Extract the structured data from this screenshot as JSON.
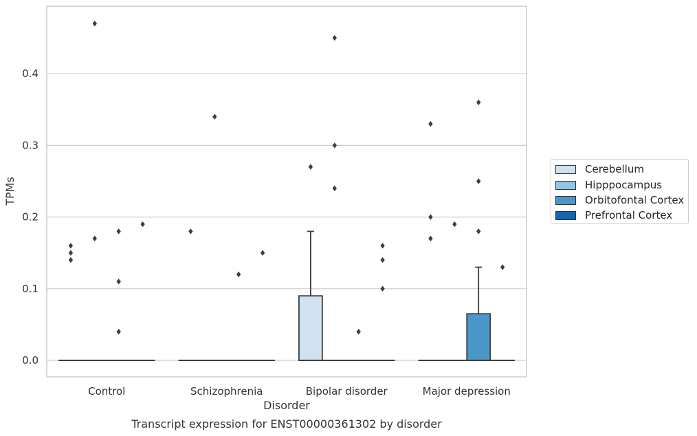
{
  "chart_data": {
    "type": "box",
    "title": "Transcript expression for ENST00000361302 by disorder",
    "xlabel": "Disorder",
    "ylabel": "TPMs",
    "ylim": [
      -0.023,
      0.495
    ],
    "yticks": [
      "0.0",
      "0.1",
      "0.2",
      "0.3",
      "0.4"
    ],
    "grid": "horizontal",
    "legend_position": "right",
    "categories": [
      "Control",
      "Schizophrenia",
      "Bipolar disorder",
      "Major depression"
    ],
    "series": [
      {
        "name": "Cerebellum",
        "color": "#d0e1f2",
        "boxes": [
          {
            "q1": 0,
            "median": 0,
            "q3": 0,
            "whisker_low": 0,
            "whisker_high": 0,
            "outliers": [
              0.16,
              0.15,
              0.14
            ]
          },
          {
            "q1": 0,
            "median": 0,
            "q3": 0,
            "whisker_low": 0,
            "whisker_high": 0,
            "outliers": [
              0.18
            ]
          },
          {
            "q1": 0,
            "median": 0,
            "q3": 0.09,
            "whisker_low": 0,
            "whisker_high": 0.18,
            "outliers": [
              0.27
            ]
          },
          {
            "q1": 0,
            "median": 0,
            "q3": 0,
            "whisker_low": 0,
            "whisker_high": 0,
            "outliers": [
              0.33,
              0.2,
              0.17
            ]
          }
        ]
      },
      {
        "name": "Hipppocampus",
        "color": "#94c4df",
        "boxes": [
          {
            "q1": 0,
            "median": 0,
            "q3": 0,
            "whisker_low": 0,
            "whisker_high": 0,
            "outliers": [
              0.47,
              0.17
            ]
          },
          {
            "q1": 0,
            "median": 0,
            "q3": 0,
            "whisker_low": 0,
            "whisker_high": 0,
            "outliers": [
              0.34
            ]
          },
          {
            "q1": 0,
            "median": 0,
            "q3": 0,
            "whisker_low": 0,
            "whisker_high": 0,
            "outliers": [
              0.45,
              0.3,
              0.24
            ]
          },
          {
            "q1": 0,
            "median": 0,
            "q3": 0,
            "whisker_low": 0,
            "whisker_high": 0,
            "outliers": [
              0.19
            ]
          }
        ]
      },
      {
        "name": "Orbitofontal Cortex",
        "color": "#4a98c9",
        "boxes": [
          {
            "q1": 0,
            "median": 0,
            "q3": 0,
            "whisker_low": 0,
            "whisker_high": 0,
            "outliers": [
              0.18,
              0.11,
              0.04
            ]
          },
          {
            "q1": 0,
            "median": 0,
            "q3": 0,
            "whisker_low": 0,
            "whisker_high": 0,
            "outliers": [
              0.12
            ]
          },
          {
            "q1": 0,
            "median": 0,
            "q3": 0,
            "whisker_low": 0,
            "whisker_high": 0,
            "outliers": [
              0.04
            ]
          },
          {
            "q1": 0,
            "median": 0,
            "q3": 0.065,
            "whisker_low": 0,
            "whisker_high": 0.13,
            "outliers": [
              0.36,
              0.25,
              0.18
            ]
          }
        ]
      },
      {
        "name": "Prefrontal Cortex",
        "color": "#1764ab",
        "boxes": [
          {
            "q1": 0,
            "median": 0,
            "q3": 0,
            "whisker_low": 0,
            "whisker_high": 0,
            "outliers": [
              0.19
            ]
          },
          {
            "q1": 0,
            "median": 0,
            "q3": 0,
            "whisker_low": 0,
            "whisker_high": 0,
            "outliers": [
              0.15
            ]
          },
          {
            "q1": 0,
            "median": 0,
            "q3": 0,
            "whisker_low": 0,
            "whisker_high": 0,
            "outliers": [
              0.16,
              0.14,
              0.1
            ]
          },
          {
            "q1": 0,
            "median": 0,
            "q3": 0,
            "whisker_low": 0,
            "whisker_high": 0,
            "outliers": [
              0.13
            ]
          }
        ]
      }
    ]
  }
}
